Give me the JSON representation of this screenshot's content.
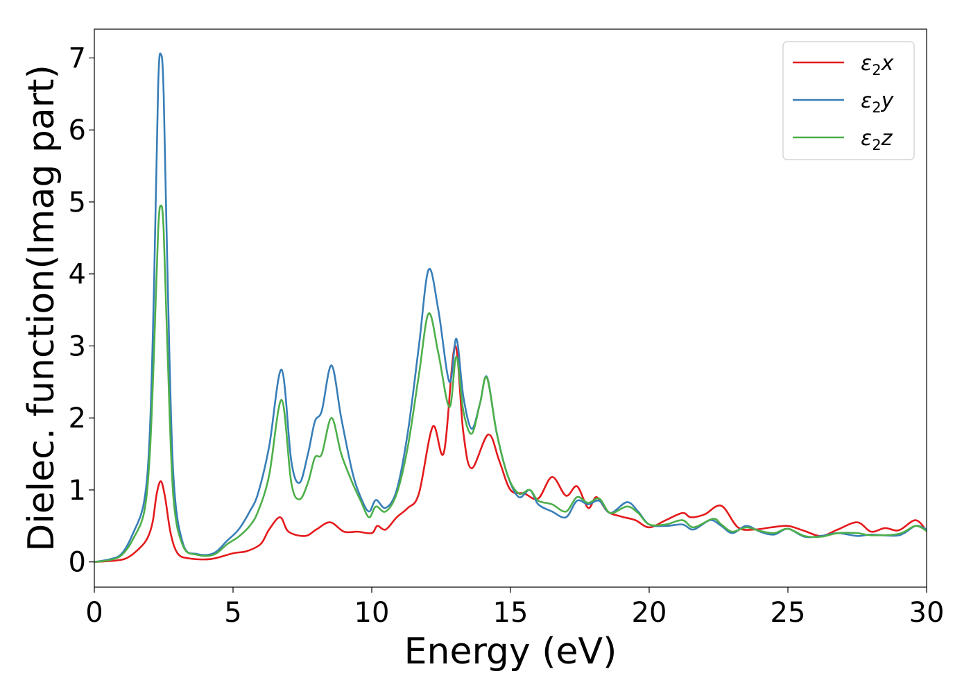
{
  "chart_data": {
    "type": "line",
    "xlabel": "Energy (eV)",
    "ylabel": "Dielec. function(Imag part)",
    "xlim": [
      0,
      30
    ],
    "ylim": [
      -0.35,
      7.4
    ],
    "xticks": [
      "0",
      "5",
      "10",
      "15",
      "20",
      "25",
      "30"
    ],
    "yticks": [
      "0",
      "1",
      "2",
      "3",
      "4",
      "5",
      "6",
      "7"
    ],
    "grid": false,
    "legend_position": "top-right",
    "series": [
      {
        "name": "ε₂x",
        "legend_base": "ε",
        "legend_sub": "2",
        "legend_suffix": "x",
        "color": "#e41a1c",
        "points": [
          [
            0,
            0
          ],
          [
            0.8,
            0.02
          ],
          [
            1.2,
            0.06
          ],
          [
            1.6,
            0.18
          ],
          [
            1.9,
            0.32
          ],
          [
            2.1,
            0.55
          ],
          [
            2.25,
            0.95
          ],
          [
            2.4,
            1.12
          ],
          [
            2.55,
            0.9
          ],
          [
            2.75,
            0.4
          ],
          [
            3.0,
            0.12
          ],
          [
            3.4,
            0.05
          ],
          [
            4.2,
            0.04
          ],
          [
            5.0,
            0.12
          ],
          [
            5.5,
            0.15
          ],
          [
            6.0,
            0.25
          ],
          [
            6.3,
            0.45
          ],
          [
            6.7,
            0.62
          ],
          [
            7.0,
            0.42
          ],
          [
            7.6,
            0.36
          ],
          [
            8.0,
            0.45
          ],
          [
            8.5,
            0.55
          ],
          [
            9.0,
            0.42
          ],
          [
            9.5,
            0.42
          ],
          [
            10.0,
            0.4
          ],
          [
            10.2,
            0.5
          ],
          [
            10.5,
            0.45
          ],
          [
            10.9,
            0.62
          ],
          [
            11.3,
            0.75
          ],
          [
            11.7,
            0.95
          ],
          [
            12.2,
            1.88
          ],
          [
            12.6,
            1.52
          ],
          [
            13.0,
            3.0
          ],
          [
            13.3,
            1.8
          ],
          [
            13.6,
            1.3
          ],
          [
            14.2,
            1.77
          ],
          [
            14.6,
            1.4
          ],
          [
            15.0,
            1.0
          ],
          [
            15.5,
            0.95
          ],
          [
            16.0,
            0.88
          ],
          [
            16.5,
            1.18
          ],
          [
            17.0,
            0.92
          ],
          [
            17.4,
            1.05
          ],
          [
            17.8,
            0.75
          ],
          [
            18.1,
            0.9
          ],
          [
            18.5,
            0.7
          ],
          [
            19.0,
            0.63
          ],
          [
            19.5,
            0.58
          ],
          [
            20.0,
            0.48
          ],
          [
            20.6,
            0.58
          ],
          [
            21.2,
            0.68
          ],
          [
            21.5,
            0.62
          ],
          [
            22.0,
            0.66
          ],
          [
            22.6,
            0.78
          ],
          [
            23.2,
            0.48
          ],
          [
            23.8,
            0.45
          ],
          [
            24.4,
            0.48
          ],
          [
            25.0,
            0.5
          ],
          [
            25.6,
            0.43
          ],
          [
            26.2,
            0.36
          ],
          [
            26.8,
            0.45
          ],
          [
            27.5,
            0.55
          ],
          [
            28.0,
            0.42
          ],
          [
            28.5,
            0.47
          ],
          [
            29.0,
            0.44
          ],
          [
            29.6,
            0.58
          ],
          [
            30.0,
            0.43
          ]
        ]
      },
      {
        "name": "ε₂y",
        "legend_base": "ε",
        "legend_sub": "2",
        "legend_suffix": "y",
        "color": "#377eb8",
        "points": [
          [
            0,
            0
          ],
          [
            0.6,
            0.04
          ],
          [
            1.0,
            0.12
          ],
          [
            1.4,
            0.4
          ],
          [
            1.8,
            0.85
          ],
          [
            2.0,
            1.8
          ],
          [
            2.15,
            3.8
          ],
          [
            2.3,
            6.6
          ],
          [
            2.4,
            7.05
          ],
          [
            2.5,
            6.5
          ],
          [
            2.65,
            3.8
          ],
          [
            2.85,
            1.2
          ],
          [
            3.2,
            0.25
          ],
          [
            3.7,
            0.11
          ],
          [
            4.3,
            0.12
          ],
          [
            4.8,
            0.3
          ],
          [
            5.2,
            0.45
          ],
          [
            5.6,
            0.7
          ],
          [
            5.9,
            0.95
          ],
          [
            6.3,
            1.6
          ],
          [
            6.75,
            2.67
          ],
          [
            7.1,
            1.4
          ],
          [
            7.4,
            1.1
          ],
          [
            7.7,
            1.5
          ],
          [
            7.95,
            1.95
          ],
          [
            8.2,
            2.1
          ],
          [
            8.55,
            2.73
          ],
          [
            8.9,
            2.0
          ],
          [
            9.3,
            1.25
          ],
          [
            9.6,
            0.9
          ],
          [
            9.9,
            0.7
          ],
          [
            10.15,
            0.86
          ],
          [
            10.5,
            0.75
          ],
          [
            10.9,
            1.0
          ],
          [
            11.3,
            1.8
          ],
          [
            11.7,
            3.0
          ],
          [
            12.05,
            4.06
          ],
          [
            12.4,
            3.5
          ],
          [
            12.8,
            2.5
          ],
          [
            13.05,
            3.1
          ],
          [
            13.3,
            2.3
          ],
          [
            13.6,
            1.85
          ],
          [
            13.9,
            2.2
          ],
          [
            14.15,
            2.57
          ],
          [
            14.5,
            1.8
          ],
          [
            14.9,
            1.2
          ],
          [
            15.3,
            0.9
          ],
          [
            15.7,
            1.0
          ],
          [
            16.0,
            0.8
          ],
          [
            16.5,
            0.7
          ],
          [
            17.0,
            0.62
          ],
          [
            17.4,
            0.85
          ],
          [
            17.8,
            0.8
          ],
          [
            18.2,
            0.85
          ],
          [
            18.6,
            0.68
          ],
          [
            19.2,
            0.83
          ],
          [
            19.6,
            0.7
          ],
          [
            20.0,
            0.52
          ],
          [
            20.6,
            0.5
          ],
          [
            21.2,
            0.52
          ],
          [
            21.6,
            0.45
          ],
          [
            22.2,
            0.58
          ],
          [
            22.6,
            0.5
          ],
          [
            23.0,
            0.4
          ],
          [
            23.5,
            0.5
          ],
          [
            24.0,
            0.42
          ],
          [
            24.5,
            0.38
          ],
          [
            25.0,
            0.46
          ],
          [
            25.6,
            0.35
          ],
          [
            26.2,
            0.36
          ],
          [
            26.8,
            0.4
          ],
          [
            27.5,
            0.36
          ],
          [
            28.0,
            0.38
          ],
          [
            29.0,
            0.37
          ],
          [
            29.6,
            0.5
          ],
          [
            30.0,
            0.45
          ]
        ]
      },
      {
        "name": "ε₂z",
        "legend_base": "ε",
        "legend_sub": "2",
        "legend_suffix": "z",
        "color": "#4daf4a",
        "points": [
          [
            0,
            0
          ],
          [
            0.6,
            0.03
          ],
          [
            1.0,
            0.1
          ],
          [
            1.4,
            0.32
          ],
          [
            1.8,
            0.7
          ],
          [
            2.0,
            1.5
          ],
          [
            2.15,
            2.9
          ],
          [
            2.3,
            4.6
          ],
          [
            2.4,
            4.95
          ],
          [
            2.5,
            4.6
          ],
          [
            2.65,
            2.8
          ],
          [
            2.85,
            0.9
          ],
          [
            3.2,
            0.22
          ],
          [
            3.7,
            0.1
          ],
          [
            4.3,
            0.1
          ],
          [
            4.8,
            0.25
          ],
          [
            5.2,
            0.35
          ],
          [
            5.6,
            0.5
          ],
          [
            5.9,
            0.7
          ],
          [
            6.3,
            1.2
          ],
          [
            6.75,
            2.25
          ],
          [
            7.1,
            1.1
          ],
          [
            7.4,
            0.87
          ],
          [
            7.7,
            1.1
          ],
          [
            7.95,
            1.45
          ],
          [
            8.2,
            1.5
          ],
          [
            8.55,
            2.0
          ],
          [
            8.9,
            1.5
          ],
          [
            9.3,
            1.1
          ],
          [
            9.6,
            0.85
          ],
          [
            9.9,
            0.62
          ],
          [
            10.15,
            0.77
          ],
          [
            10.5,
            0.7
          ],
          [
            10.9,
            0.95
          ],
          [
            11.3,
            1.6
          ],
          [
            11.7,
            2.6
          ],
          [
            12.05,
            3.45
          ],
          [
            12.4,
            2.9
          ],
          [
            12.8,
            2.15
          ],
          [
            13.05,
            2.85
          ],
          [
            13.3,
            2.1
          ],
          [
            13.6,
            1.78
          ],
          [
            13.9,
            2.2
          ],
          [
            14.15,
            2.56
          ],
          [
            14.5,
            1.8
          ],
          [
            14.9,
            1.2
          ],
          [
            15.3,
            0.95
          ],
          [
            15.7,
            1.0
          ],
          [
            16.0,
            0.85
          ],
          [
            16.5,
            0.8
          ],
          [
            17.0,
            0.7
          ],
          [
            17.4,
            0.9
          ],
          [
            17.8,
            0.82
          ],
          [
            18.2,
            0.88
          ],
          [
            18.6,
            0.68
          ],
          [
            19.2,
            0.77
          ],
          [
            19.6,
            0.68
          ],
          [
            20.0,
            0.52
          ],
          [
            20.6,
            0.52
          ],
          [
            21.2,
            0.58
          ],
          [
            21.6,
            0.48
          ],
          [
            22.3,
            0.6
          ],
          [
            22.6,
            0.52
          ],
          [
            23.0,
            0.42
          ],
          [
            23.5,
            0.48
          ],
          [
            24.0,
            0.43
          ],
          [
            24.5,
            0.4
          ],
          [
            25.0,
            0.46
          ],
          [
            25.6,
            0.36
          ],
          [
            26.2,
            0.35
          ],
          [
            26.8,
            0.4
          ],
          [
            27.5,
            0.4
          ],
          [
            28.0,
            0.37
          ],
          [
            29.0,
            0.39
          ],
          [
            29.6,
            0.5
          ],
          [
            30.0,
            0.43
          ]
        ]
      }
    ]
  }
}
